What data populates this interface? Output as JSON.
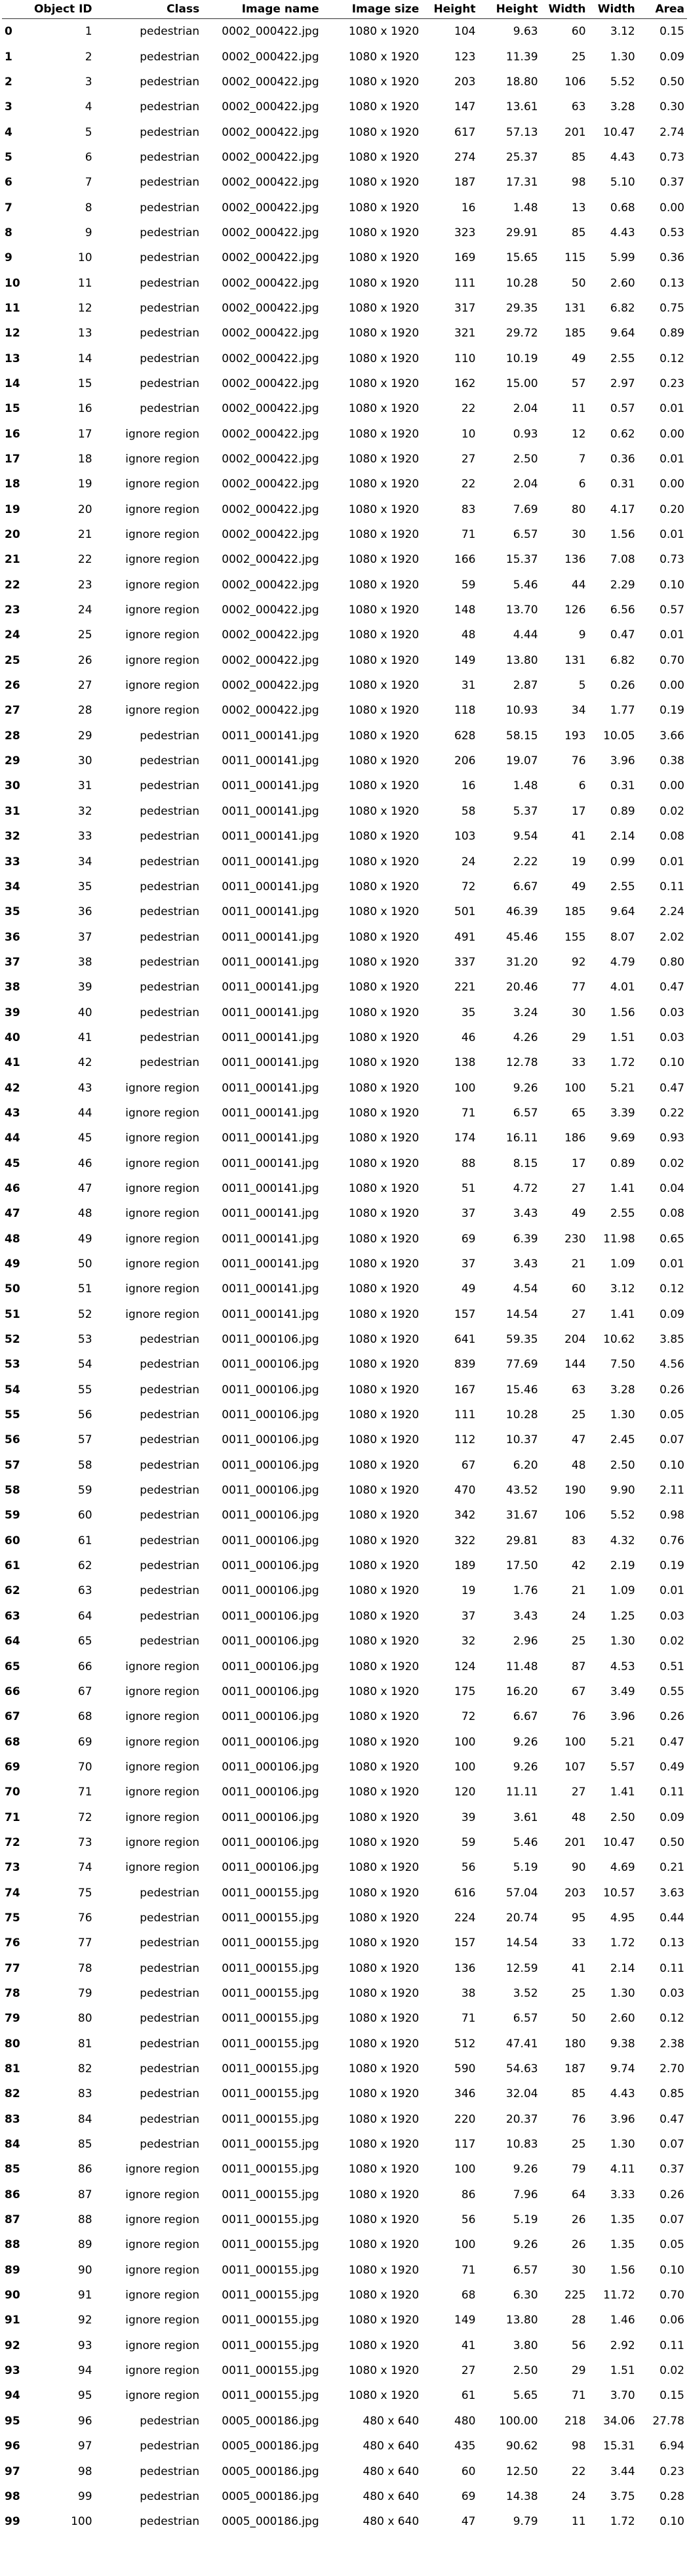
{
  "columns": [
    "",
    "Object ID",
    "Class",
    "Image name",
    "Image size",
    "Height",
    "Height",
    "Width",
    "Width",
    "Area"
  ],
  "rows": [
    [
      "0",
      "1",
      "pedestrian",
      "0002_000422.jpg",
      "1080 x 1920",
      "104",
      "9.63",
      "60",
      "3.12",
      "0.15"
    ],
    [
      "1",
      "2",
      "pedestrian",
      "0002_000422.jpg",
      "1080 x 1920",
      "123",
      "11.39",
      "25",
      "1.30",
      "0.09"
    ],
    [
      "2",
      "3",
      "pedestrian",
      "0002_000422.jpg",
      "1080 x 1920",
      "203",
      "18.80",
      "106",
      "5.52",
      "0.50"
    ],
    [
      "3",
      "4",
      "pedestrian",
      "0002_000422.jpg",
      "1080 x 1920",
      "147",
      "13.61",
      "63",
      "3.28",
      "0.30"
    ],
    [
      "4",
      "5",
      "pedestrian",
      "0002_000422.jpg",
      "1080 x 1920",
      "617",
      "57.13",
      "201",
      "10.47",
      "2.74"
    ],
    [
      "5",
      "6",
      "pedestrian",
      "0002_000422.jpg",
      "1080 x 1920",
      "274",
      "25.37",
      "85",
      "4.43",
      "0.73"
    ],
    [
      "6",
      "7",
      "pedestrian",
      "0002_000422.jpg",
      "1080 x 1920",
      "187",
      "17.31",
      "98",
      "5.10",
      "0.37"
    ],
    [
      "7",
      "8",
      "pedestrian",
      "0002_000422.jpg",
      "1080 x 1920",
      "16",
      "1.48",
      "13",
      "0.68",
      "0.00"
    ],
    [
      "8",
      "9",
      "pedestrian",
      "0002_000422.jpg",
      "1080 x 1920",
      "323",
      "29.91",
      "85",
      "4.43",
      "0.53"
    ],
    [
      "9",
      "10",
      "pedestrian",
      "0002_000422.jpg",
      "1080 x 1920",
      "169",
      "15.65",
      "115",
      "5.99",
      "0.36"
    ],
    [
      "10",
      "11",
      "pedestrian",
      "0002_000422.jpg",
      "1080 x 1920",
      "111",
      "10.28",
      "50",
      "2.60",
      "0.13"
    ],
    [
      "11",
      "12",
      "pedestrian",
      "0002_000422.jpg",
      "1080 x 1920",
      "317",
      "29.35",
      "131",
      "6.82",
      "0.75"
    ],
    [
      "12",
      "13",
      "pedestrian",
      "0002_000422.jpg",
      "1080 x 1920",
      "321",
      "29.72",
      "185",
      "9.64",
      "0.89"
    ],
    [
      "13",
      "14",
      "pedestrian",
      "0002_000422.jpg",
      "1080 x 1920",
      "110",
      "10.19",
      "49",
      "2.55",
      "0.12"
    ],
    [
      "14",
      "15",
      "pedestrian",
      "0002_000422.jpg",
      "1080 x 1920",
      "162",
      "15.00",
      "57",
      "2.97",
      "0.23"
    ],
    [
      "15",
      "16",
      "pedestrian",
      "0002_000422.jpg",
      "1080 x 1920",
      "22",
      "2.04",
      "11",
      "0.57",
      "0.01"
    ],
    [
      "16",
      "17",
      "ignore region",
      "0002_000422.jpg",
      "1080 x 1920",
      "10",
      "0.93",
      "12",
      "0.62",
      "0.00"
    ],
    [
      "17",
      "18",
      "ignore region",
      "0002_000422.jpg",
      "1080 x 1920",
      "27",
      "2.50",
      "7",
      "0.36",
      "0.01"
    ],
    [
      "18",
      "19",
      "ignore region",
      "0002_000422.jpg",
      "1080 x 1920",
      "22",
      "2.04",
      "6",
      "0.31",
      "0.00"
    ],
    [
      "19",
      "20",
      "ignore region",
      "0002_000422.jpg",
      "1080 x 1920",
      "83",
      "7.69",
      "80",
      "4.17",
      "0.20"
    ],
    [
      "20",
      "21",
      "ignore region",
      "0002_000422.jpg",
      "1080 x 1920",
      "71",
      "6.57",
      "30",
      "1.56",
      "0.01"
    ],
    [
      "21",
      "22",
      "ignore region",
      "0002_000422.jpg",
      "1080 x 1920",
      "166",
      "15.37",
      "136",
      "7.08",
      "0.73"
    ],
    [
      "22",
      "23",
      "ignore region",
      "0002_000422.jpg",
      "1080 x 1920",
      "59",
      "5.46",
      "44",
      "2.29",
      "0.10"
    ],
    [
      "23",
      "24",
      "ignore region",
      "0002_000422.jpg",
      "1080 x 1920",
      "148",
      "13.70",
      "126",
      "6.56",
      "0.57"
    ],
    [
      "24",
      "25",
      "ignore region",
      "0002_000422.jpg",
      "1080 x 1920",
      "48",
      "4.44",
      "9",
      "0.47",
      "0.01"
    ],
    [
      "25",
      "26",
      "ignore region",
      "0002_000422.jpg",
      "1080 x 1920",
      "149",
      "13.80",
      "131",
      "6.82",
      "0.70"
    ],
    [
      "26",
      "27",
      "ignore region",
      "0002_000422.jpg",
      "1080 x 1920",
      "31",
      "2.87",
      "5",
      "0.26",
      "0.00"
    ],
    [
      "27",
      "28",
      "ignore region",
      "0002_000422.jpg",
      "1080 x 1920",
      "118",
      "10.93",
      "34",
      "1.77",
      "0.19"
    ],
    [
      "28",
      "29",
      "pedestrian",
      "0011_000141.jpg",
      "1080 x 1920",
      "628",
      "58.15",
      "193",
      "10.05",
      "3.66"
    ],
    [
      "29",
      "30",
      "pedestrian",
      "0011_000141.jpg",
      "1080 x 1920",
      "206",
      "19.07",
      "76",
      "3.96",
      "0.38"
    ],
    [
      "30",
      "31",
      "pedestrian",
      "0011_000141.jpg",
      "1080 x 1920",
      "16",
      "1.48",
      "6",
      "0.31",
      "0.00"
    ],
    [
      "31",
      "32",
      "pedestrian",
      "0011_000141.jpg",
      "1080 x 1920",
      "58",
      "5.37",
      "17",
      "0.89",
      "0.02"
    ],
    [
      "32",
      "33",
      "pedestrian",
      "0011_000141.jpg",
      "1080 x 1920",
      "103",
      "9.54",
      "41",
      "2.14",
      "0.08"
    ],
    [
      "33",
      "34",
      "pedestrian",
      "0011_000141.jpg",
      "1080 x 1920",
      "24",
      "2.22",
      "19",
      "0.99",
      "0.01"
    ],
    [
      "34",
      "35",
      "pedestrian",
      "0011_000141.jpg",
      "1080 x 1920",
      "72",
      "6.67",
      "49",
      "2.55",
      "0.11"
    ],
    [
      "35",
      "36",
      "pedestrian",
      "0011_000141.jpg",
      "1080 x 1920",
      "501",
      "46.39",
      "185",
      "9.64",
      "2.24"
    ],
    [
      "36",
      "37",
      "pedestrian",
      "0011_000141.jpg",
      "1080 x 1920",
      "491",
      "45.46",
      "155",
      "8.07",
      "2.02"
    ],
    [
      "37",
      "38",
      "pedestrian",
      "0011_000141.jpg",
      "1080 x 1920",
      "337",
      "31.20",
      "92",
      "4.79",
      "0.80"
    ],
    [
      "38",
      "39",
      "pedestrian",
      "0011_000141.jpg",
      "1080 x 1920",
      "221",
      "20.46",
      "77",
      "4.01",
      "0.47"
    ],
    [
      "39",
      "40",
      "pedestrian",
      "0011_000141.jpg",
      "1080 x 1920",
      "35",
      "3.24",
      "30",
      "1.56",
      "0.03"
    ],
    [
      "40",
      "41",
      "pedestrian",
      "0011_000141.jpg",
      "1080 x 1920",
      "46",
      "4.26",
      "29",
      "1.51",
      "0.03"
    ],
    [
      "41",
      "42",
      "pedestrian",
      "0011_000141.jpg",
      "1080 x 1920",
      "138",
      "12.78",
      "33",
      "1.72",
      "0.10"
    ],
    [
      "42",
      "43",
      "ignore region",
      "0011_000141.jpg",
      "1080 x 1920",
      "100",
      "9.26",
      "100",
      "5.21",
      "0.47"
    ],
    [
      "43",
      "44",
      "ignore region",
      "0011_000141.jpg",
      "1080 x 1920",
      "71",
      "6.57",
      "65",
      "3.39",
      "0.22"
    ],
    [
      "44",
      "45",
      "ignore region",
      "0011_000141.jpg",
      "1080 x 1920",
      "174",
      "16.11",
      "186",
      "9.69",
      "0.93"
    ],
    [
      "45",
      "46",
      "ignore region",
      "0011_000141.jpg",
      "1080 x 1920",
      "88",
      "8.15",
      "17",
      "0.89",
      "0.02"
    ],
    [
      "46",
      "47",
      "ignore region",
      "0011_000141.jpg",
      "1080 x 1920",
      "51",
      "4.72",
      "27",
      "1.41",
      "0.04"
    ],
    [
      "47",
      "48",
      "ignore region",
      "0011_000141.jpg",
      "1080 x 1920",
      "37",
      "3.43",
      "49",
      "2.55",
      "0.08"
    ],
    [
      "48",
      "49",
      "ignore region",
      "0011_000141.jpg",
      "1080 x 1920",
      "69",
      "6.39",
      "230",
      "11.98",
      "0.65"
    ],
    [
      "49",
      "50",
      "ignore region",
      "0011_000141.jpg",
      "1080 x 1920",
      "37",
      "3.43",
      "21",
      "1.09",
      "0.01"
    ],
    [
      "50",
      "51",
      "ignore region",
      "0011_000141.jpg",
      "1080 x 1920",
      "49",
      "4.54",
      "60",
      "3.12",
      "0.12"
    ],
    [
      "51",
      "52",
      "ignore region",
      "0011_000141.jpg",
      "1080 x 1920",
      "157",
      "14.54",
      "27",
      "1.41",
      "0.09"
    ],
    [
      "52",
      "53",
      "pedestrian",
      "0011_000106.jpg",
      "1080 x 1920",
      "641",
      "59.35",
      "204",
      "10.62",
      "3.85"
    ],
    [
      "53",
      "54",
      "pedestrian",
      "0011_000106.jpg",
      "1080 x 1920",
      "839",
      "77.69",
      "144",
      "7.50",
      "4.56"
    ],
    [
      "54",
      "55",
      "pedestrian",
      "0011_000106.jpg",
      "1080 x 1920",
      "167",
      "15.46",
      "63",
      "3.28",
      "0.26"
    ],
    [
      "55",
      "56",
      "pedestrian",
      "0011_000106.jpg",
      "1080 x 1920",
      "111",
      "10.28",
      "25",
      "1.30",
      "0.05"
    ],
    [
      "56",
      "57",
      "pedestrian",
      "0011_000106.jpg",
      "1080 x 1920",
      "112",
      "10.37",
      "47",
      "2.45",
      "0.07"
    ],
    [
      "57",
      "58",
      "pedestrian",
      "0011_000106.jpg",
      "1080 x 1920",
      "67",
      "6.20",
      "48",
      "2.50",
      "0.10"
    ],
    [
      "58",
      "59",
      "pedestrian",
      "0011_000106.jpg",
      "1080 x 1920",
      "470",
      "43.52",
      "190",
      "9.90",
      "2.11"
    ],
    [
      "59",
      "60",
      "pedestrian",
      "0011_000106.jpg",
      "1080 x 1920",
      "342",
      "31.67",
      "106",
      "5.52",
      "0.98"
    ],
    [
      "60",
      "61",
      "pedestrian",
      "0011_000106.jpg",
      "1080 x 1920",
      "322",
      "29.81",
      "83",
      "4.32",
      "0.76"
    ],
    [
      "61",
      "62",
      "pedestrian",
      "0011_000106.jpg",
      "1080 x 1920",
      "189",
      "17.50",
      "42",
      "2.19",
      "0.19"
    ],
    [
      "62",
      "63",
      "pedestrian",
      "0011_000106.jpg",
      "1080 x 1920",
      "19",
      "1.76",
      "21",
      "1.09",
      "0.01"
    ],
    [
      "63",
      "64",
      "pedestrian",
      "0011_000106.jpg",
      "1080 x 1920",
      "37",
      "3.43",
      "24",
      "1.25",
      "0.03"
    ],
    [
      "64",
      "65",
      "pedestrian",
      "0011_000106.jpg",
      "1080 x 1920",
      "32",
      "2.96",
      "25",
      "1.30",
      "0.02"
    ],
    [
      "65",
      "66",
      "ignore region",
      "0011_000106.jpg",
      "1080 x 1920",
      "124",
      "11.48",
      "87",
      "4.53",
      "0.51"
    ],
    [
      "66",
      "67",
      "ignore region",
      "0011_000106.jpg",
      "1080 x 1920",
      "175",
      "16.20",
      "67",
      "3.49",
      "0.55"
    ],
    [
      "67",
      "68",
      "ignore region",
      "0011_000106.jpg",
      "1080 x 1920",
      "72",
      "6.67",
      "76",
      "3.96",
      "0.26"
    ],
    [
      "68",
      "69",
      "ignore region",
      "0011_000106.jpg",
      "1080 x 1920",
      "100",
      "9.26",
      "100",
      "5.21",
      "0.47"
    ],
    [
      "69",
      "70",
      "ignore region",
      "0011_000106.jpg",
      "1080 x 1920",
      "100",
      "9.26",
      "107",
      "5.57",
      "0.49"
    ],
    [
      "70",
      "71",
      "ignore region",
      "0011_000106.jpg",
      "1080 x 1920",
      "120",
      "11.11",
      "27",
      "1.41",
      "0.11"
    ],
    [
      "71",
      "72",
      "ignore region",
      "0011_000106.jpg",
      "1080 x 1920",
      "39",
      "3.61",
      "48",
      "2.50",
      "0.09"
    ],
    [
      "72",
      "73",
      "ignore region",
      "0011_000106.jpg",
      "1080 x 1920",
      "59",
      "5.46",
      "201",
      "10.47",
      "0.50"
    ],
    [
      "73",
      "74",
      "ignore region",
      "0011_000106.jpg",
      "1080 x 1920",
      "56",
      "5.19",
      "90",
      "4.69",
      "0.21"
    ],
    [
      "74",
      "75",
      "pedestrian",
      "0011_000155.jpg",
      "1080 x 1920",
      "616",
      "57.04",
      "203",
      "10.57",
      "3.63"
    ],
    [
      "75",
      "76",
      "pedestrian",
      "0011_000155.jpg",
      "1080 x 1920",
      "224",
      "20.74",
      "95",
      "4.95",
      "0.44"
    ],
    [
      "76",
      "77",
      "pedestrian",
      "0011_000155.jpg",
      "1080 x 1920",
      "157",
      "14.54",
      "33",
      "1.72",
      "0.13"
    ],
    [
      "77",
      "78",
      "pedestrian",
      "0011_000155.jpg",
      "1080 x 1920",
      "136",
      "12.59",
      "41",
      "2.14",
      "0.11"
    ],
    [
      "78",
      "79",
      "pedestrian",
      "0011_000155.jpg",
      "1080 x 1920",
      "38",
      "3.52",
      "25",
      "1.30",
      "0.03"
    ],
    [
      "79",
      "80",
      "pedestrian",
      "0011_000155.jpg",
      "1080 x 1920",
      "71",
      "6.57",
      "50",
      "2.60",
      "0.12"
    ],
    [
      "80",
      "81",
      "pedestrian",
      "0011_000155.jpg",
      "1080 x 1920",
      "512",
      "47.41",
      "180",
      "9.38",
      "2.38"
    ],
    [
      "81",
      "82",
      "pedestrian",
      "0011_000155.jpg",
      "1080 x 1920",
      "590",
      "54.63",
      "187",
      "9.74",
      "2.70"
    ],
    [
      "82",
      "83",
      "pedestrian",
      "0011_000155.jpg",
      "1080 x 1920",
      "346",
      "32.04",
      "85",
      "4.43",
      "0.85"
    ],
    [
      "83",
      "84",
      "pedestrian",
      "0011_000155.jpg",
      "1080 x 1920",
      "220",
      "20.37",
      "76",
      "3.96",
      "0.47"
    ],
    [
      "84",
      "85",
      "pedestrian",
      "0011_000155.jpg",
      "1080 x 1920",
      "117",
      "10.83",
      "25",
      "1.30",
      "0.07"
    ],
    [
      "85",
      "86",
      "ignore region",
      "0011_000155.jpg",
      "1080 x 1920",
      "100",
      "9.26",
      "79",
      "4.11",
      "0.37"
    ],
    [
      "86",
      "87",
      "ignore region",
      "0011_000155.jpg",
      "1080 x 1920",
      "86",
      "7.96",
      "64",
      "3.33",
      "0.26"
    ],
    [
      "87",
      "88",
      "ignore region",
      "0011_000155.jpg",
      "1080 x 1920",
      "56",
      "5.19",
      "26",
      "1.35",
      "0.07"
    ],
    [
      "88",
      "89",
      "ignore region",
      "0011_000155.jpg",
      "1080 x 1920",
      "100",
      "9.26",
      "26",
      "1.35",
      "0.05"
    ],
    [
      "89",
      "90",
      "ignore region",
      "0011_000155.jpg",
      "1080 x 1920",
      "71",
      "6.57",
      "30",
      "1.56",
      "0.10"
    ],
    [
      "90",
      "91",
      "ignore region",
      "0011_000155.jpg",
      "1080 x 1920",
      "68",
      "6.30",
      "225",
      "11.72",
      "0.70"
    ],
    [
      "91",
      "92",
      "ignore region",
      "0011_000155.jpg",
      "1080 x 1920",
      "149",
      "13.80",
      "28",
      "1.46",
      "0.06"
    ],
    [
      "92",
      "93",
      "ignore region",
      "0011_000155.jpg",
      "1080 x 1920",
      "41",
      "3.80",
      "56",
      "2.92",
      "0.11"
    ],
    [
      "93",
      "94",
      "ignore region",
      "0011_000155.jpg",
      "1080 x 1920",
      "27",
      "2.50",
      "29",
      "1.51",
      "0.02"
    ],
    [
      "94",
      "95",
      "ignore region",
      "0011_000155.jpg",
      "1080 x 1920",
      "61",
      "5.65",
      "71",
      "3.70",
      "0.15"
    ],
    [
      "95",
      "96",
      "pedestrian",
      "0005_000186.jpg",
      "480 x 640",
      "480",
      "100.00",
      "218",
      "34.06",
      "27.78"
    ],
    [
      "96",
      "97",
      "pedestrian",
      "0005_000186.jpg",
      "480 x 640",
      "435",
      "90.62",
      "98",
      "15.31",
      "6.94"
    ],
    [
      "97",
      "98",
      "pedestrian",
      "0005_000186.jpg",
      "480 x 640",
      "60",
      "12.50",
      "22",
      "3.44",
      "0.23"
    ],
    [
      "98",
      "99",
      "pedestrian",
      "0005_000186.jpg",
      "480 x 640",
      "69",
      "14.38",
      "24",
      "3.75",
      "0.28"
    ],
    [
      "99",
      "100",
      "pedestrian",
      "0005_000186.jpg",
      "480 x 640",
      "47",
      "9.79",
      "11",
      "1.72",
      "0.10"
    ]
  ]
}
